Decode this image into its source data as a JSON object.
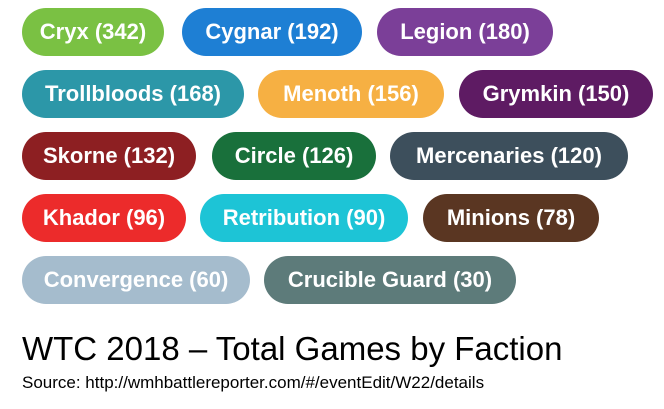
{
  "chart_data": {
    "type": "table",
    "title": "WTC 2018 – Total Games by Faction",
    "source": "Source: http://wmhbattlereporter.com/#/eventEdit/W22/details",
    "items": [
      {
        "label": "Cryx (342)",
        "faction": "Cryx",
        "value": 342,
        "color": "#7ac143"
      },
      {
        "label": "Cygnar (192)",
        "faction": "Cygnar",
        "value": 192,
        "color": "#1e7fd4"
      },
      {
        "label": "Legion (180)",
        "faction": "Legion",
        "value": 180,
        "color": "#7b3f98"
      },
      {
        "label": "Trollbloods (168)",
        "faction": "Trollbloods",
        "value": 168,
        "color": "#2c97a8"
      },
      {
        "label": "Menoth (156)",
        "faction": "Menoth",
        "value": 156,
        "color": "#f6b043"
      },
      {
        "label": "Grymkin (150)",
        "faction": "Grymkin",
        "value": 150,
        "color": "#5e1b63"
      },
      {
        "label": "Skorne (132)",
        "faction": "Skorne",
        "value": 132,
        "color": "#8d1f22"
      },
      {
        "label": "Circle (126)",
        "faction": "Circle",
        "value": 126,
        "color": "#19703b"
      },
      {
        "label": "Mercenaries (120)",
        "faction": "Mercenaries",
        "value": 120,
        "color": "#3d4f5c"
      },
      {
        "label": "Khador (96)",
        "faction": "Khador",
        "value": 96,
        "color": "#ec2b2b"
      },
      {
        "label": "Retribution (90)",
        "faction": "Retribution",
        "value": 90,
        "color": "#1dc4d6"
      },
      {
        "label": "Minions (78)",
        "faction": "Minions",
        "value": 78,
        "color": "#5a3622"
      },
      {
        "label": "Convergence (60)",
        "faction": "Convergence",
        "value": 60,
        "color": "#a5bccd"
      },
      {
        "label": "Crucible Guard (30)",
        "faction": "Crucible Guard",
        "value": 30,
        "color": "#5d7b7a"
      }
    ]
  }
}
